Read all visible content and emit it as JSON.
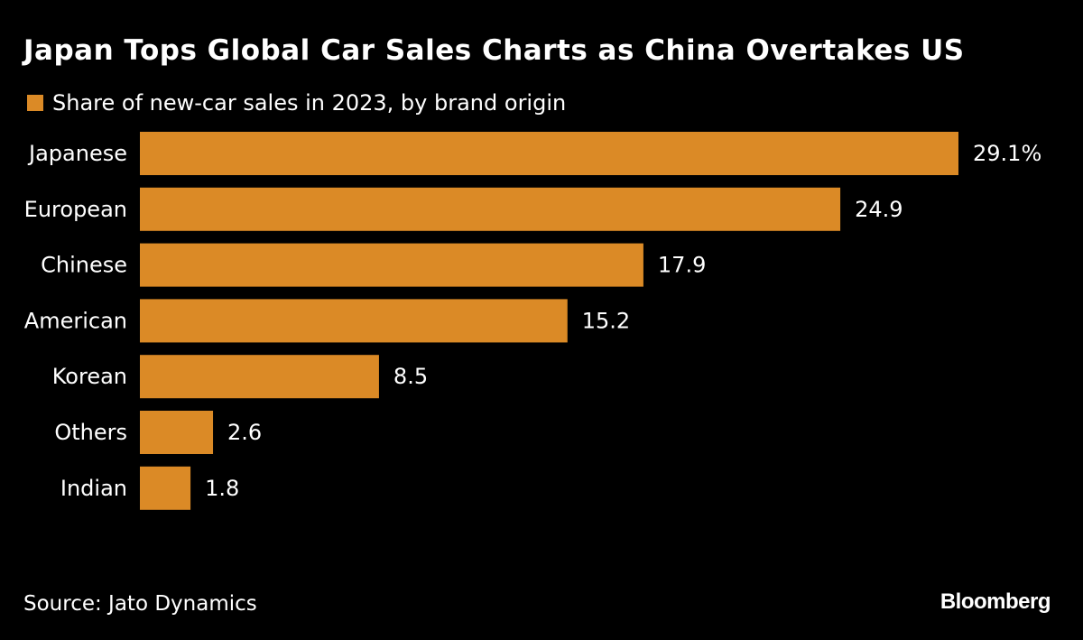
{
  "title": "Japan Tops Global Car Sales Charts as China Overtakes US",
  "source": "Source: Jato Dynamics",
  "logo": "Bloomberg",
  "chart_data": {
    "type": "bar",
    "orientation": "horizontal",
    "title": "Japan Tops Global Car Sales Charts as China Overtakes US",
    "legend": "Share of new-car sales in 2023, by brand origin",
    "categories": [
      "Japanese",
      "European",
      "Chinese",
      "American",
      "Korean",
      "Others",
      "Indian"
    ],
    "values": [
      29.1,
      24.9,
      17.9,
      15.2,
      8.5,
      2.6,
      1.8
    ],
    "value_labels": [
      "29.1%",
      "24.9",
      "17.9",
      "15.2",
      "8.5",
      "2.6",
      "1.8"
    ],
    "unit": "%",
    "xlim": [
      0,
      29.1
    ],
    "grid": false,
    "bar_color": "#DB8A26",
    "background": "#000000"
  }
}
